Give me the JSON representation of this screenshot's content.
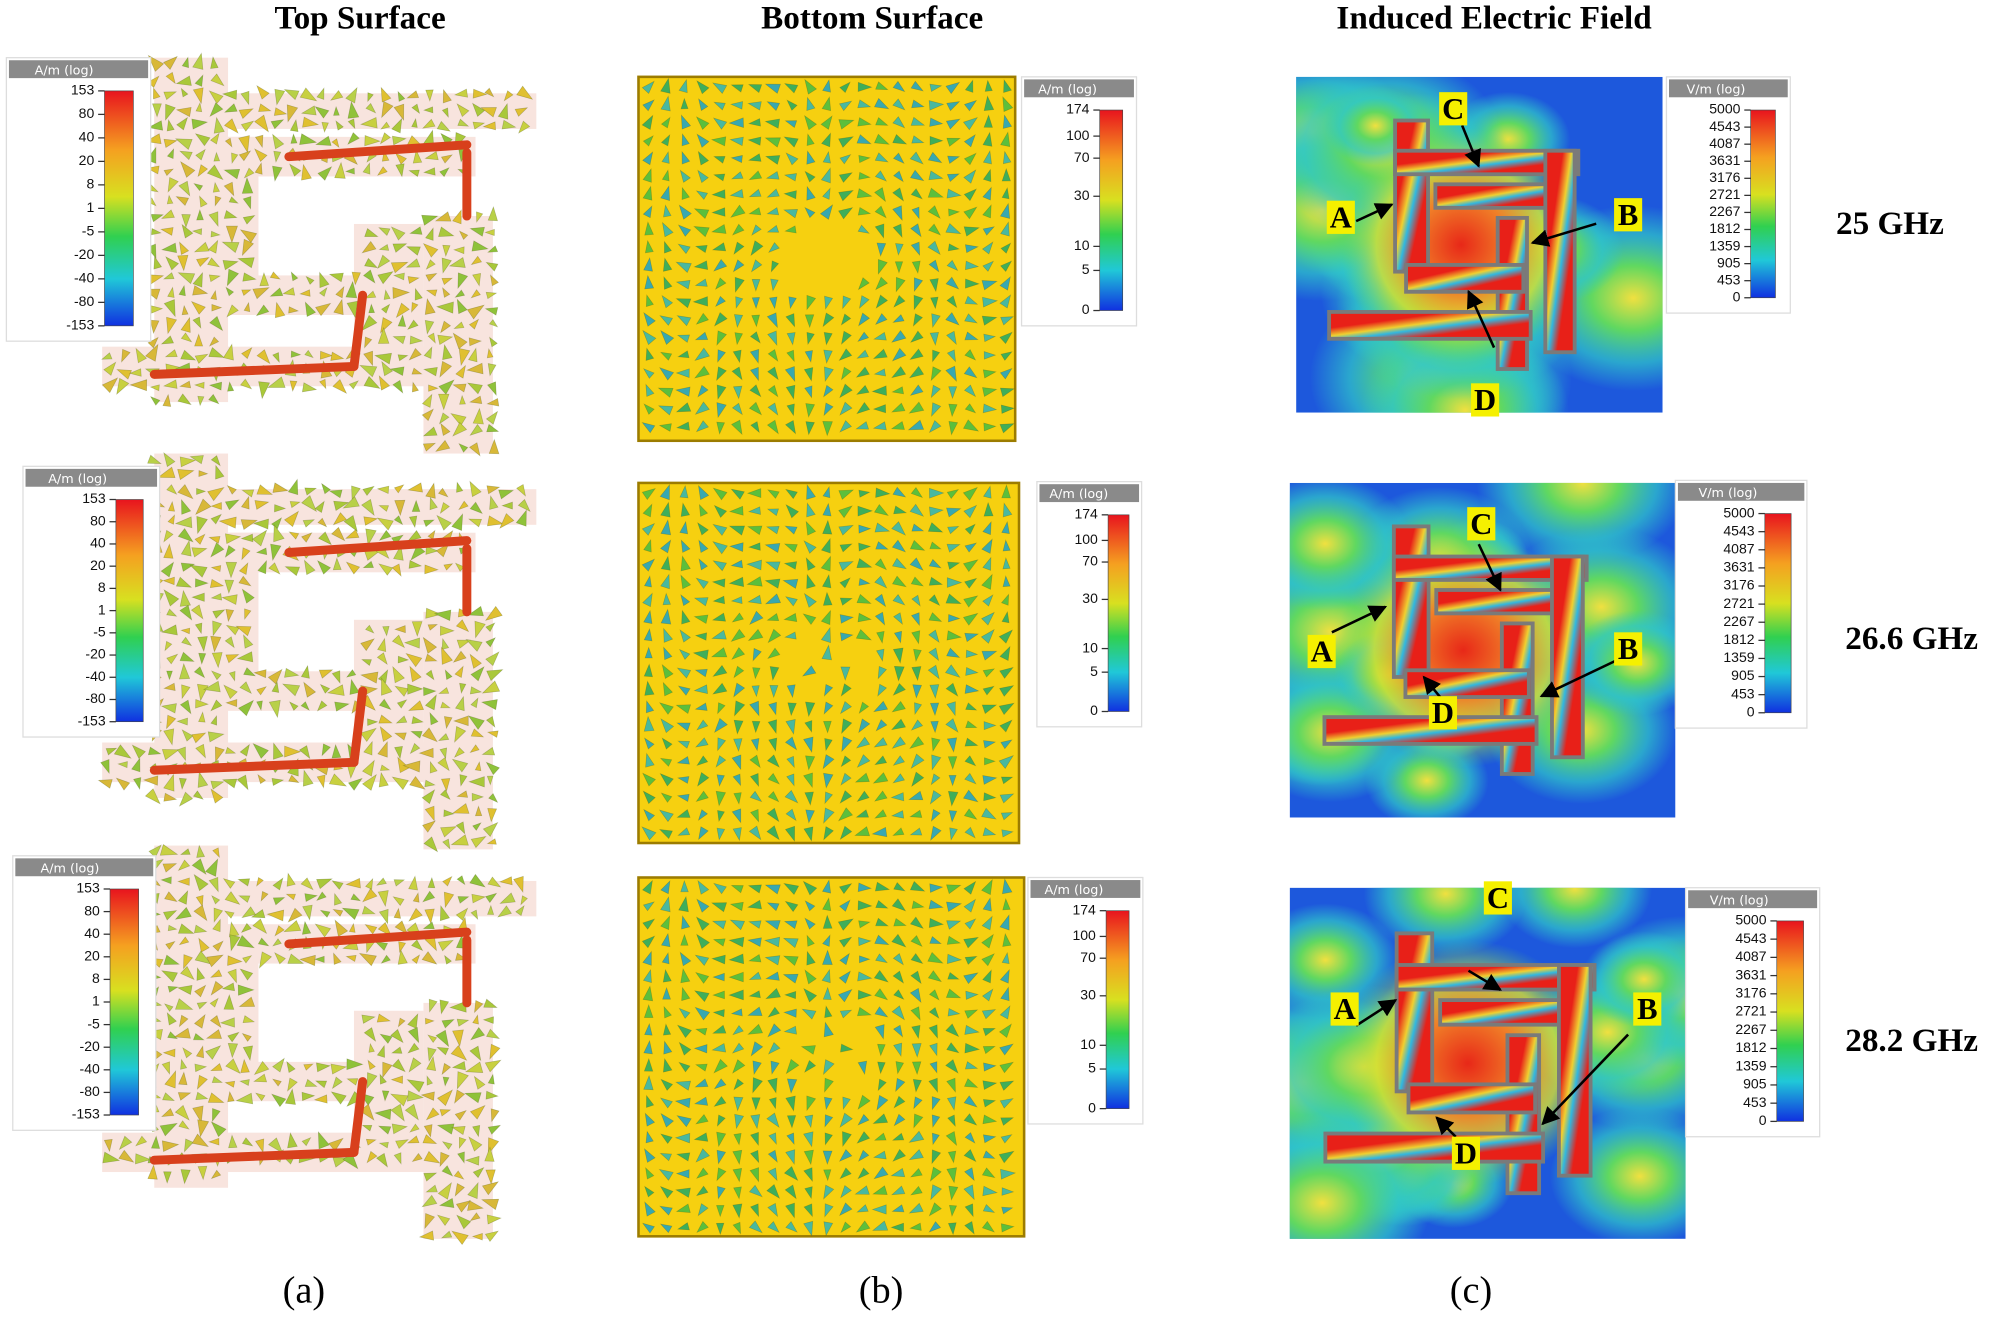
{
  "columns": [
    "Top Surface",
    "Bottom Surface",
    "Induced Electric Field"
  ],
  "panel_labels": [
    "(a)",
    "(b)",
    "(c)"
  ],
  "frequencies": [
    "25 GHz",
    "26.6 GHz",
    "28.2 GHz"
  ],
  "point_labels": [
    "A",
    "B",
    "C",
    "D"
  ],
  "colorbars": {
    "top_surface": {
      "title": "A/m (log)",
      "ticks": [
        "153",
        "80",
        "40",
        "20",
        "8",
        "1",
        "-5",
        "-20",
        "-40",
        "-80",
        "-153"
      ]
    },
    "bottom_surface": {
      "title": "A/m (log)",
      "ticks": [
        "174",
        "100",
        "70",
        "30",
        "10",
        "5",
        "0"
      ]
    },
    "electric_field": {
      "title": "V/m (log)",
      "ticks": [
        "5000",
        "4543",
        "4087",
        "3631",
        "3176",
        "2721",
        "2267",
        "1812",
        "1359",
        "905",
        "453",
        "0"
      ]
    }
  }
}
